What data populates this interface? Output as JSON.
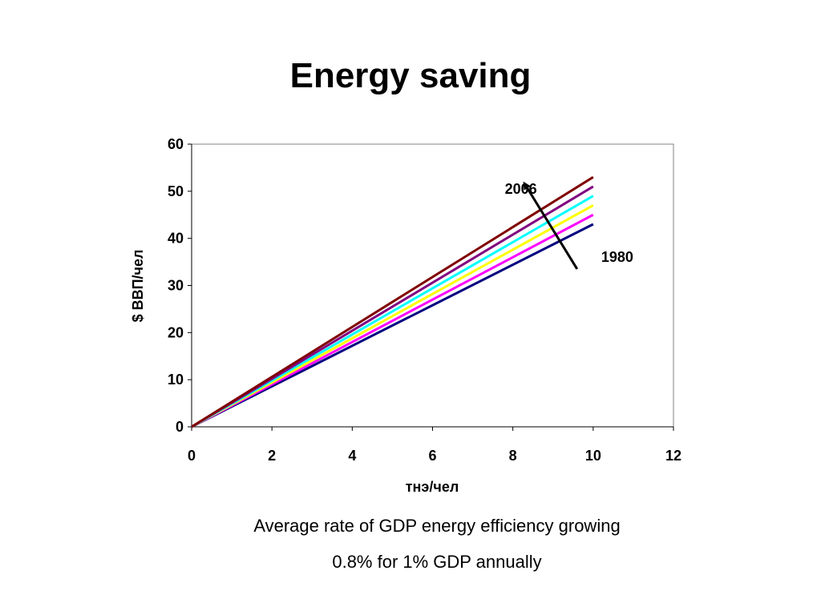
{
  "slide": {
    "title": "Energy saving",
    "caption_lines": [
      "Average rate of GDP energy efficiency growing",
      "0.8% for 1% GDP annually"
    ]
  },
  "chart_data": {
    "type": "line",
    "xlabel": "тнэ/чел",
    "ylabel": "$ ВВП/чел",
    "xlim": [
      0,
      12
    ],
    "ylim": [
      0,
      60
    ],
    "xticks": [
      0,
      2,
      4,
      6,
      8,
      10,
      12
    ],
    "yticks": [
      0,
      10,
      20,
      30,
      40,
      50,
      60
    ],
    "grid": false,
    "legend": "none",
    "series": [
      {
        "color": "#000080",
        "x": [
          0,
          10
        ],
        "y": [
          0,
          43
        ]
      },
      {
        "color": "#FF00FF",
        "x": [
          0,
          10
        ],
        "y": [
          0,
          45
        ]
      },
      {
        "color": "#FFFF00",
        "x": [
          0,
          10
        ],
        "y": [
          0,
          47
        ]
      },
      {
        "color": "#00FFFF",
        "x": [
          0,
          10
        ],
        "y": [
          0,
          49
        ]
      },
      {
        "color": "#800080",
        "x": [
          0,
          10
        ],
        "y": [
          0,
          51
        ]
      },
      {
        "color": "#800000",
        "x": [
          0,
          10
        ],
        "y": [
          0,
          53
        ]
      }
    ],
    "annotations": [
      {
        "text": "2006",
        "x": 7.8,
        "y": 49.5
      },
      {
        "text": "1980",
        "x": 10.2,
        "y": 35.0
      }
    ],
    "arrow": {
      "from": [
        9.6,
        33.5
      ],
      "to": [
        8.3,
        51.5
      ]
    }
  }
}
